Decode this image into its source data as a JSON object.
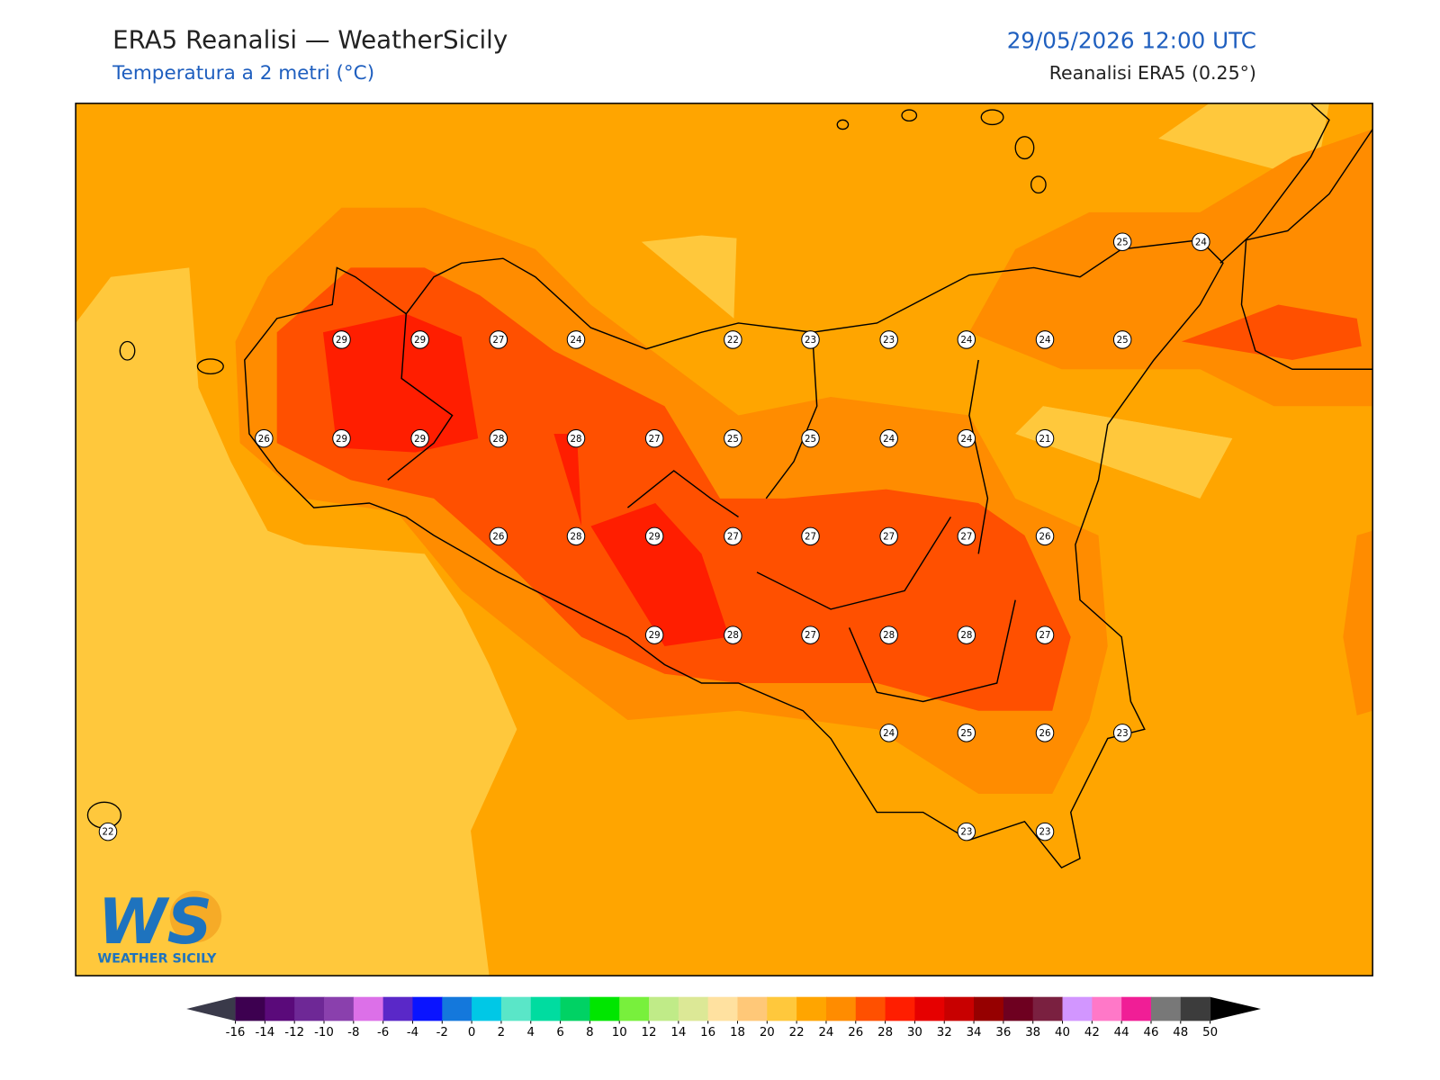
{
  "header": {
    "title": "ERA5 Reanalisi — WeatherSicily",
    "subtitle": "Temperatura a 2 metri (°C)",
    "datetime": "29/05/2026 12:00 UTC",
    "source": "Reanalisi ERA5 (0.25°)"
  },
  "stations": [
    25,
    24,
    29,
    29,
    27,
    24,
    22,
    23,
    23,
    24,
    24,
    25,
    26,
    29,
    29,
    28,
    28,
    27,
    25,
    25,
    24,
    24,
    21,
    26,
    28,
    29,
    27,
    27,
    27,
    27,
    26,
    29,
    28,
    27,
    28,
    28,
    27,
    24,
    25,
    26,
    23,
    22,
    23,
    23
  ],
  "logo": {
    "mark": "WS",
    "text": "WEATHER SICILY"
  },
  "colorbar": {
    "ticks": [
      -16,
      -14,
      -12,
      -10,
      -8,
      -6,
      -4,
      -2,
      0,
      2,
      4,
      6,
      8,
      10,
      12,
      14,
      16,
      18,
      20,
      22,
      24,
      26,
      28,
      30,
      32,
      34,
      36,
      38,
      40,
      42,
      44,
      46,
      48,
      50
    ],
    "colors": [
      "#3d0050",
      "#5a0a7a",
      "#6e2896",
      "#8a40ad",
      "#dc70e8",
      "#5a28c8",
      "#0a14ff",
      "#1478dc",
      "#00c8e6",
      "#5ae6c8",
      "#00dca0",
      "#00d264",
      "#00e600",
      "#78f03c",
      "#c0eb88",
      "#dce896",
      "#ffe1a0",
      "#ffc878",
      "#ffc83c",
      "#ffa500",
      "#ff8c00",
      "#ff5000",
      "#ff1e00",
      "#e60000",
      "#c80000",
      "#960000",
      "#6e0020",
      "#7a2040",
      "#d296ff",
      "#ff78c8",
      "#f01e96",
      "#787878",
      "#3c3c3c"
    ],
    "under": "#3a3a4a",
    "over": "#000000"
  }
}
